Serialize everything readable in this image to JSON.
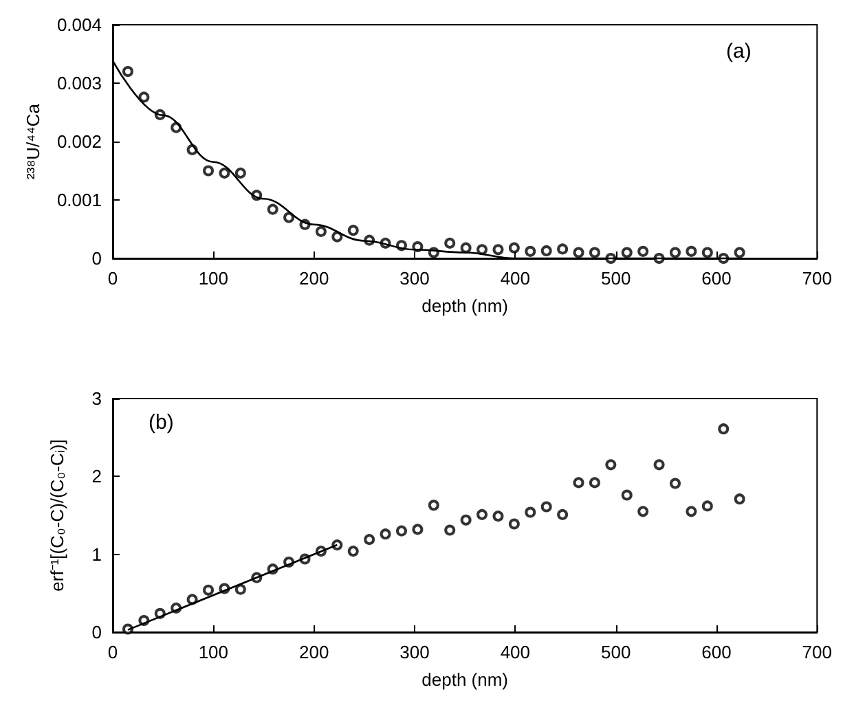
{
  "chart_data": [
    {
      "type": "scatter",
      "xlabel": "depth (nm)",
      "ylabel": "²³⁸U/⁴⁴Ca",
      "annotations": [
        "(a)"
      ],
      "xlim": [
        0,
        700
      ],
      "xticks": [
        0,
        100,
        200,
        300,
        400,
        500,
        600,
        700
      ],
      "ylim": [
        0,
        0.004
      ],
      "yticks": [
        0,
        0.001,
        0.002,
        0.003,
        0.004
      ],
      "grid": false,
      "series": [
        {
          "marker": "circle",
          "color": "#000000",
          "x": [
            15,
            31,
            47,
            63,
            79,
            95,
            111,
            127,
            143,
            159,
            175,
            191,
            207,
            223,
            239,
            255,
            271,
            287,
            303,
            319,
            335,
            351,
            367,
            383,
            399,
            415,
            431,
            447,
            463,
            479,
            495,
            511,
            527,
            543,
            559,
            575,
            591,
            607,
            623
          ],
          "values": [
            0.0032,
            0.00276,
            0.00246,
            0.00224,
            0.00186,
            0.0015,
            0.00146,
            0.00146,
            0.00108,
            0.00084,
            0.0007,
            0.00058,
            0.00046,
            0.00037,
            0.00048,
            0.00031,
            0.00026,
            0.00022,
            0.0002,
            0.0001,
            0.00026,
            0.00018,
            0.00015,
            0.00015,
            0.00018,
            0.00012,
            0.00013,
            0.00016,
            0.0001,
            0.0001,
            0,
            0.0001,
            0.00012,
            0,
            0.0001,
            0.00012,
            0.0001,
            0,
            0.0001
          ]
        },
        {
          "type": "line",
          "marker": "none",
          "line_style": "solid",
          "color": "#000000",
          "x": [
            0,
            50,
            100,
            150,
            200,
            250,
            300,
            350,
            400,
            500,
            623
          ],
          "values": [
            0.00338,
            0.00245,
            0.00165,
            0.00102,
            0.00058,
            0.0003,
            0.00015,
            0.0001,
            0,
            0,
            0
          ]
        }
      ]
    },
    {
      "type": "scatter",
      "xlabel": "depth (nm)",
      "ylabel": "erf⁻¹[(C₀-C)/(C₀-Cᵢ)]",
      "annotations": [
        "(b)"
      ],
      "xlim": [
        0,
        700
      ],
      "xticks": [
        0,
        100,
        200,
        300,
        400,
        500,
        600,
        700
      ],
      "ylim": [
        0,
        3
      ],
      "yticks": [
        0,
        1,
        2,
        3
      ],
      "grid": false,
      "series": [
        {
          "marker": "circle",
          "color": "#000000",
          "x": [
            15,
            31,
            47,
            63,
            79,
            95,
            111,
            127,
            143,
            159,
            175,
            191,
            207,
            223,
            239,
            255,
            271,
            287,
            303,
            319,
            335,
            351,
            367,
            383,
            399,
            415,
            431,
            447,
            463,
            479,
            495,
            511,
            527,
            543,
            559,
            575,
            591,
            607,
            623
          ],
          "values": [
            0.04,
            0.15,
            0.24,
            0.31,
            0.42,
            0.54,
            0.56,
            0.55,
            0.7,
            0.81,
            0.9,
            0.94,
            1.04,
            1.12,
            1.04,
            1.19,
            1.26,
            1.3,
            1.32,
            1.63,
            1.31,
            1.44,
            1.51,
            1.49,
            1.39,
            1.54,
            1.61,
            1.51,
            1.92,
            1.92,
            2.15,
            1.76,
            1.55,
            2.15,
            1.91,
            1.55,
            1.62,
            2.61,
            1.71
          ]
        },
        {
          "type": "line",
          "marker": "none",
          "line_style": "solid",
          "color": "#000000",
          "x": [
            15,
            223
          ],
          "values": [
            0.03,
            1.12
          ]
        }
      ]
    }
  ]
}
